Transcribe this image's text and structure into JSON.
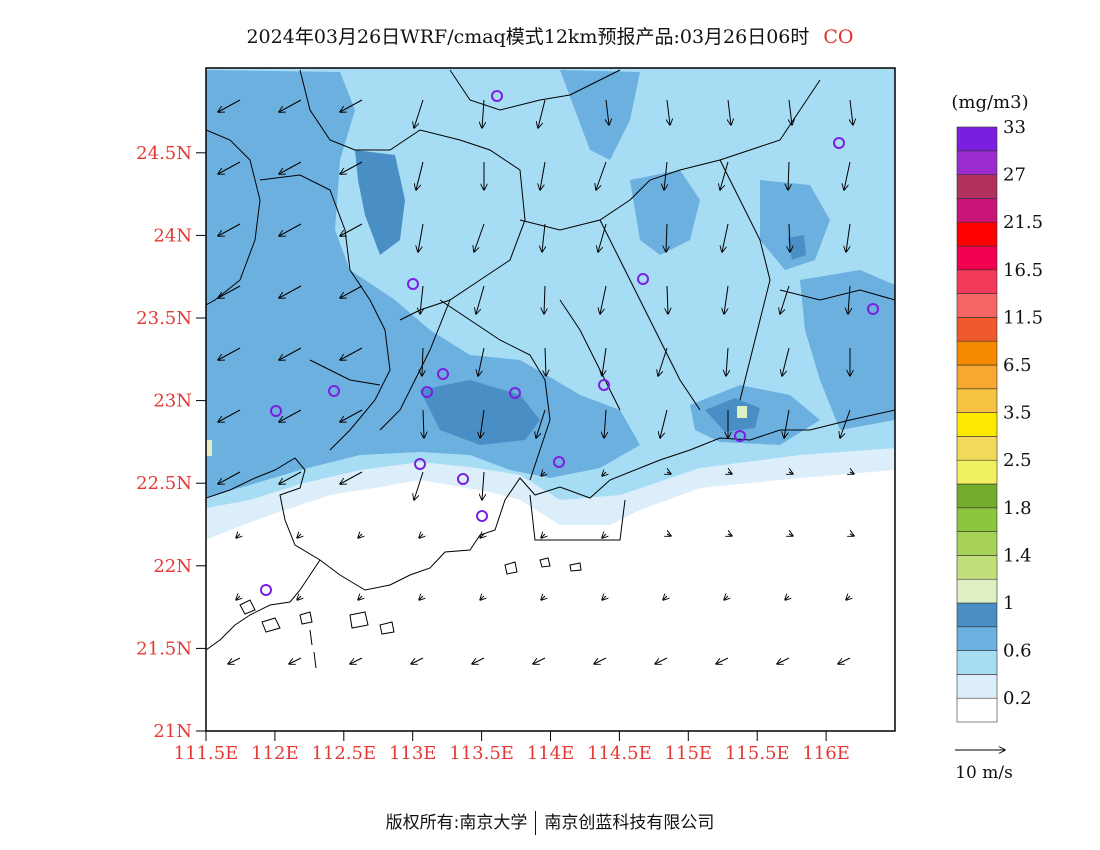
{
  "title": {
    "main": "2024年03月26日WRF/cmaq模式12km预报产品:03月26日06时",
    "species": "CO"
  },
  "map": {
    "lat_labels": [
      "21N",
      "21.5N",
      "22N",
      "22.5N",
      "23N",
      "23.5N",
      "24N",
      "24.5N"
    ],
    "lon_labels": [
      "111.5E",
      "112E",
      "112.5E",
      "113E",
      "113.5E",
      "114E",
      "114.5E",
      "115E",
      "115.5E",
      "116E"
    ],
    "lon_range": [
      111.5,
      116.5
    ],
    "lat_range": [
      21.0,
      24.9
    ],
    "axis_label_color": "#e53935",
    "monitor_marker_color": "#7b1fe0"
  },
  "legend": {
    "unit": "(mg/m3)",
    "colors": [
      "#ffffff",
      "#dceefa",
      "#a7dcf5",
      "#6cb0e0",
      "#4a8ec6",
      "#dfefc2",
      "#c2e07a",
      "#a6d25a",
      "#8cc63f",
      "#74ac2e",
      "#f0f060",
      "#f3d95a",
      "#fde800",
      "#f5c242",
      "#f8a830",
      "#f58a00",
      "#ee5a2c",
      "#f56565",
      "#f23a5a",
      "#f0004f",
      "#ff0000",
      "#c8147a",
      "#b0305e",
      "#9c2cd0",
      "#7a1ee0"
    ],
    "labels": [
      "0.2",
      "0.6",
      "1",
      "1.4",
      "1.8",
      "2.5",
      "3.5",
      "6.5",
      "11.5",
      "16.5",
      "21.5",
      "27",
      "33"
    ]
  },
  "wind": {
    "reference_label": "10 m/s"
  },
  "footer": {
    "copyright": "版权所有:南京大学",
    "company": "南京创蓝科技有限公司"
  }
}
